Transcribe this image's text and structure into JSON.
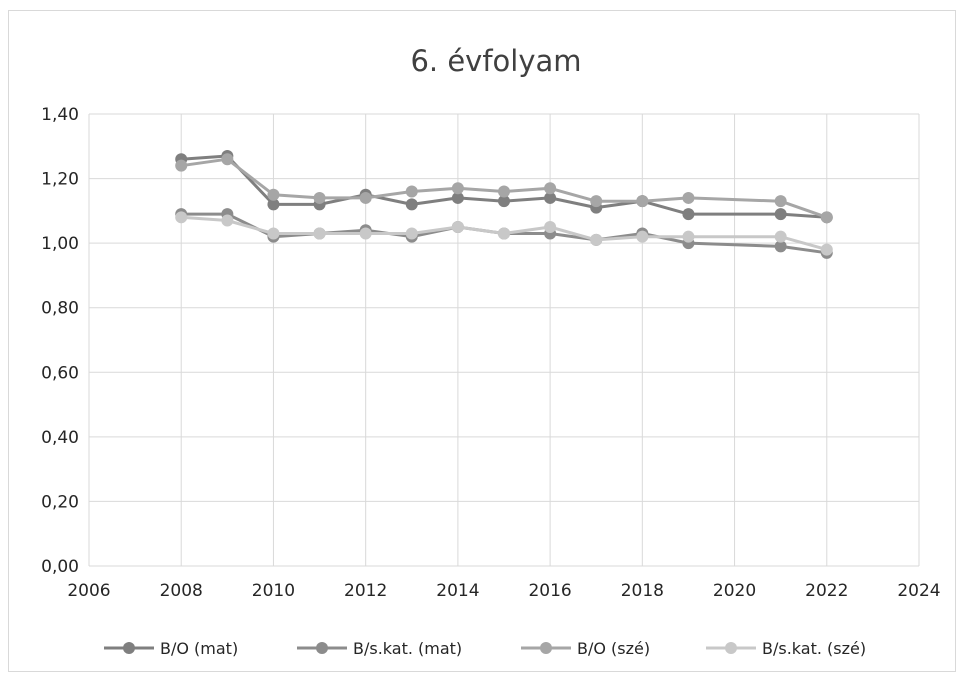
{
  "chart_data": {
    "type": "scatter",
    "title": "6. évfolyam",
    "xlabel": "",
    "ylabel": "",
    "xlim": [
      2006,
      2024
    ],
    "ylim": [
      0,
      1.4
    ],
    "x_ticks": [
      "2006",
      "2008",
      "2010",
      "2012",
      "2014",
      "2016",
      "2018",
      "2020",
      "2022",
      "2024"
    ],
    "y_ticks": [
      "0,00",
      "0,20",
      "0,40",
      "0,60",
      "0,80",
      "1,00",
      "1,20",
      "1,40"
    ],
    "grid": true,
    "legend_position": "bottom",
    "series": [
      {
        "name": "B/O (mat)",
        "color": "#7f7f7f",
        "x": [
          2008,
          2009,
          2010,
          2011,
          2012,
          2013,
          2014,
          2015,
          2016,
          2017,
          2018,
          2019,
          2021,
          2022
        ],
        "values": [
          1.26,
          1.27,
          1.12,
          1.12,
          1.15,
          1.12,
          1.14,
          1.13,
          1.14,
          1.11,
          1.13,
          1.09,
          1.09,
          1.08
        ]
      },
      {
        "name": "B/s.kat. (mat)",
        "color": "#8c8c8c",
        "x": [
          2008,
          2009,
          2010,
          2011,
          2012,
          2013,
          2014,
          2015,
          2016,
          2017,
          2018,
          2019,
          2021,
          2022
        ],
        "values": [
          1.09,
          1.09,
          1.02,
          1.03,
          1.04,
          1.02,
          1.05,
          1.03,
          1.03,
          1.01,
          1.03,
          1.0,
          0.99,
          0.97
        ]
      },
      {
        "name": "B/O (szé)",
        "color": "#a6a6a6",
        "x": [
          2008,
          2009,
          2010,
          2011,
          2012,
          2013,
          2014,
          2015,
          2016,
          2017,
          2018,
          2019,
          2021,
          2022
        ],
        "values": [
          1.24,
          1.26,
          1.15,
          1.14,
          1.14,
          1.16,
          1.17,
          1.16,
          1.17,
          1.13,
          1.13,
          1.14,
          1.13,
          1.08
        ]
      },
      {
        "name": "B/s.kat. (szé)",
        "color": "#c8c8c8",
        "x": [
          2008,
          2009,
          2010,
          2011,
          2012,
          2013,
          2014,
          2015,
          2016,
          2017,
          2018,
          2019,
          2021,
          2022
        ],
        "values": [
          1.08,
          1.07,
          1.03,
          1.03,
          1.03,
          1.03,
          1.05,
          1.03,
          1.05,
          1.01,
          1.02,
          1.02,
          1.02,
          0.98
        ]
      }
    ]
  }
}
